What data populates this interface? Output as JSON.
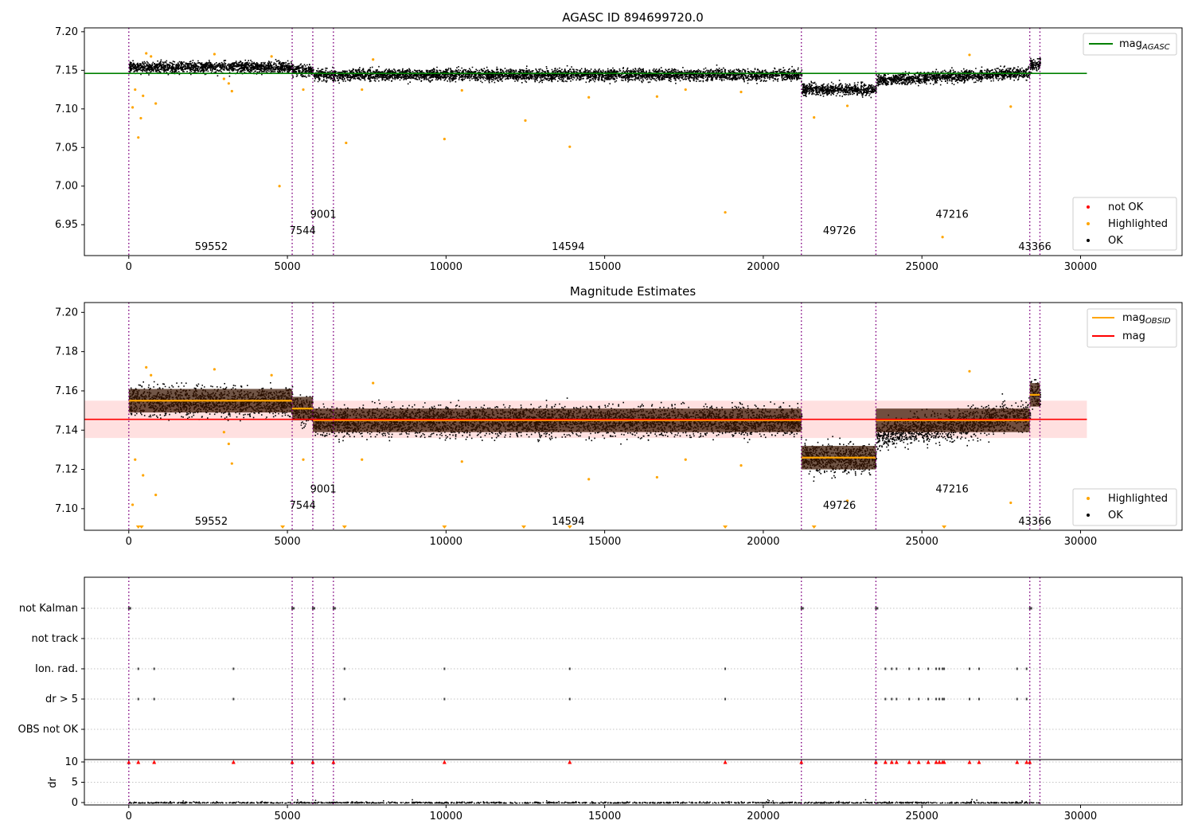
{
  "chart_data": [
    {
      "type": "scatter",
      "title": "AGASC ID 894699720.0",
      "xlim": [
        -1400,
        33200
      ],
      "ylim": [
        6.91,
        7.205
      ],
      "xticks": [
        0,
        5000,
        10000,
        15000,
        20000,
        25000,
        30000
      ],
      "xtick_labels": [
        "0",
        "5000",
        "10000",
        "15000",
        "20000",
        "25000",
        "30000"
      ],
      "yticks": [
        6.95,
        7.0,
        7.05,
        7.1,
        7.15,
        7.2
      ],
      "ytick_labels": [
        "6.95",
        "7.00",
        "7.05",
        "7.10",
        "7.15",
        "7.20"
      ],
      "boundaries": [
        0,
        5150,
        5800,
        6450,
        21200,
        23550,
        28400,
        28720
      ],
      "obsids": [
        {
          "label": "59552",
          "x": 2600,
          "y": 6.915
        },
        {
          "label": "7544",
          "x": 5480,
          "y": 6.936
        },
        {
          "label": "9001",
          "x": 6130,
          "y": 6.957
        },
        {
          "label": "14594",
          "x": 13850,
          "y": 6.915
        },
        {
          "label": "49726",
          "x": 22400,
          "y": 6.936
        },
        {
          "label": "47216",
          "x": 25950,
          "y": 6.957
        },
        {
          "label": "43366",
          "x": 28560,
          "y": 6.915
        }
      ],
      "segments": [
        {
          "x0": 0,
          "x1": 5150,
          "y": 7.155
        },
        {
          "x0": 5150,
          "x1": 5800,
          "y": 7.151
        },
        {
          "x0": 5800,
          "x1": 6450,
          "y": 7.145
        },
        {
          "x0": 6450,
          "x1": 21200,
          "y": 7.145
        },
        {
          "x0": 21200,
          "x1": 23550,
          "y": 7.126
        },
        {
          "x0": 23550,
          "x1": 28400,
          "y": 7.145
        },
        {
          "x0": 28400,
          "x1": 28720,
          "y": 7.158
        }
      ],
      "agasc_mag": 7.146,
      "mag_line_range": [
        -1400,
        30200
      ],
      "highlighted": [
        [
          120,
          7.102
        ],
        [
          200,
          7.125
        ],
        [
          300,
          7.063
        ],
        [
          380,
          7.088
        ],
        [
          450,
          7.117
        ],
        [
          550,
          7.172
        ],
        [
          700,
          7.168
        ],
        [
          850,
          7.107
        ],
        [
          2700,
          7.171
        ],
        [
          3000,
          7.139
        ],
        [
          3150,
          7.133
        ],
        [
          3250,
          7.123
        ],
        [
          4500,
          7.168
        ],
        [
          4750,
          7.0
        ],
        [
          5500,
          7.125
        ],
        [
          6850,
          7.056
        ],
        [
          7350,
          7.125
        ],
        [
          7700,
          7.164
        ],
        [
          9950,
          7.061
        ],
        [
          10500,
          7.124
        ],
        [
          12500,
          7.085
        ],
        [
          13900,
          7.051
        ],
        [
          14500,
          7.115
        ],
        [
          16650,
          7.116
        ],
        [
          17550,
          7.125
        ],
        [
          18800,
          6.966
        ],
        [
          19300,
          7.122
        ],
        [
          21600,
          7.089
        ],
        [
          22650,
          7.104
        ],
        [
          25650,
          6.934
        ],
        [
          26500,
          7.17
        ],
        [
          27800,
          7.103
        ]
      ],
      "legend_lines": [
        {
          "name": "mag",
          "subscript": "AGASC",
          "color": "#008000"
        }
      ],
      "legend_points": [
        {
          "name": "not OK",
          "color": "#ff0000"
        },
        {
          "name": "Highlighted",
          "color": "#ffa500"
        },
        {
          "name": "OK",
          "color": "#000000"
        }
      ],
      "grid": false
    },
    {
      "type": "scatter",
      "title": "Magnitude Estimates",
      "xlim": [
        -1400,
        33200
      ],
      "ylim": [
        7.089,
        7.205
      ],
      "xticks": [
        0,
        5000,
        10000,
        15000,
        20000,
        25000,
        30000
      ],
      "xtick_labels": [
        "0",
        "5000",
        "10000",
        "15000",
        "20000",
        "25000",
        "30000"
      ],
      "yticks": [
        7.1,
        7.12,
        7.14,
        7.16,
        7.18,
        7.2
      ],
      "ytick_labels": [
        "7.10",
        "7.12",
        "7.14",
        "7.16",
        "7.18",
        "7.20"
      ],
      "mag": 7.1455,
      "mag_band": [
        7.136,
        7.155
      ],
      "below_range_markers": [
        300,
        400,
        4850,
        6800,
        9950,
        12450,
        13900,
        18800,
        21600,
        25700
      ],
      "legend_lines": [
        {
          "name": "mag",
          "subscript": "OBSID",
          "color": "#ffa500"
        },
        {
          "name": "mag",
          "subscript": "",
          "color": "#ff0000"
        }
      ],
      "legend_points": [
        {
          "name": "Highlighted",
          "color": "#ffa500"
        },
        {
          "name": "OK",
          "color": "#000000"
        }
      ],
      "grid": false
    },
    {
      "type": "scatter",
      "title": "",
      "xlim": [
        -1400,
        33200
      ],
      "xticks": [
        0,
        5000,
        10000,
        15000,
        20000,
        25000,
        30000
      ],
      "xtick_labels": [
        "0",
        "5000",
        "10000",
        "15000",
        "20000",
        "25000",
        "30000"
      ],
      "flag_rows": [
        "not Kalman",
        "not track",
        "Ion. rad.",
        "dr > 5",
        "OBS not OK"
      ],
      "flag_points": {
        "not Kalman": [
          0,
          5150,
          5800,
          6450,
          21200,
          23550,
          28400
        ],
        "not track": [],
        "Ion. rad.": [
          300,
          800,
          3300,
          6800,
          9950,
          13900,
          18800,
          23850,
          24050,
          24200,
          24600,
          24900,
          25200,
          25450,
          25550,
          25650,
          25700,
          26500,
          26800,
          28000,
          28300
        ],
        "dr > 5": [
          300,
          800,
          3300,
          6800,
          9950,
          13900,
          18800,
          23850,
          24050,
          24200,
          24600,
          24900,
          25200,
          25450,
          25550,
          25650,
          25700,
          26500,
          26800,
          28000,
          28300
        ],
        "OBS not OK": []
      },
      "dr_ylim": [
        -0.5,
        10.5
      ],
      "dr_yticks": [
        0,
        5,
        10
      ],
      "dr_ytick_labels": [
        "0",
        "5",
        "10"
      ],
      "dr_ylabel": "dr",
      "dr_capped_value": 10,
      "dr_capped_points": [
        0,
        300,
        800,
        3300,
        5150,
        5800,
        6450,
        9950,
        13900,
        18800,
        21200,
        23550,
        23850,
        24050,
        24200,
        24600,
        24900,
        25200,
        25450,
        25550,
        25650,
        25700,
        26500,
        26800,
        28000,
        28300,
        28400
      ],
      "grid": true
    }
  ]
}
